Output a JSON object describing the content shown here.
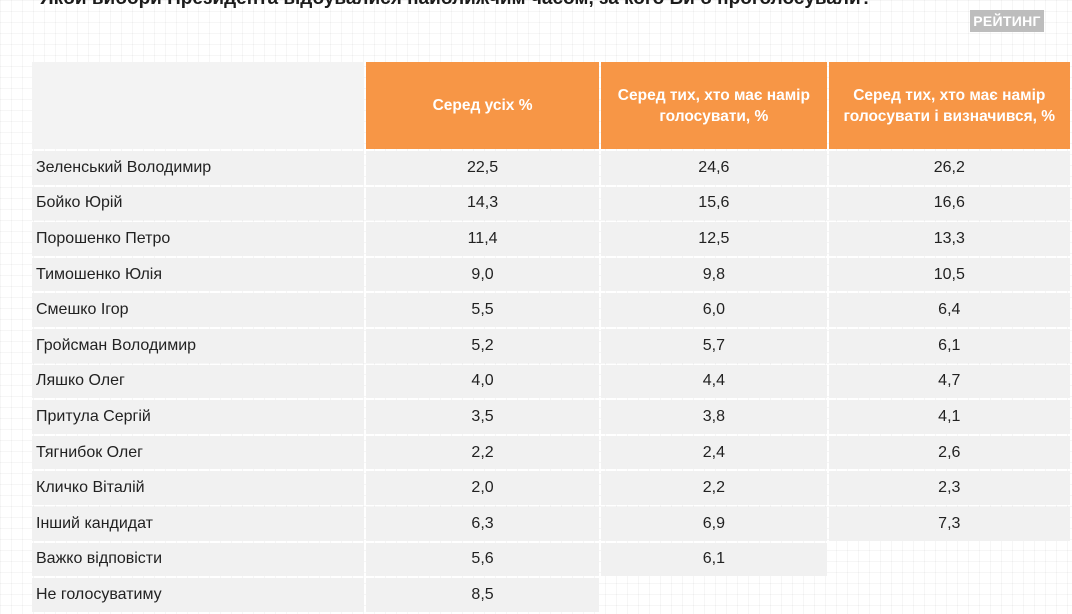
{
  "page": {
    "title": "Якби вибори Президента відбувалися найближчим часом, за кого Ви б проголосували?",
    "brand": "РЕЙТИНГ"
  },
  "chart_data": {
    "type": "table",
    "title": "Якби вибори Президента відбувалися найближчим часом, за кого Ви б проголосували?",
    "columns": [
      "",
      "Серед усіх %",
      "Серед тих, хто має намір голосувати, %",
      "Серед тих, хто має намір голосувати і визначився, %"
    ],
    "rows": [
      {
        "name": "Зеленський Володимир",
        "values": [
          "22,5",
          "24,6",
          "26,2"
        ]
      },
      {
        "name": "Бойко Юрій",
        "values": [
          "14,3",
          "15,6",
          "16,6"
        ]
      },
      {
        "name": "Порошенко Петро",
        "values": [
          "11,4",
          "12,5",
          "13,3"
        ]
      },
      {
        "name": "Тимошенко Юлія",
        "values": [
          "9,0",
          "9,8",
          "10,5"
        ]
      },
      {
        "name": "Смешко Ігор",
        "values": [
          "5,5",
          "6,0",
          "6,4"
        ]
      },
      {
        "name": "Гройсман Володимир",
        "values": [
          "5,2",
          "5,7",
          "6,1"
        ]
      },
      {
        "name": "Ляшко Олег",
        "values": [
          "4,0",
          "4,4",
          "4,7"
        ]
      },
      {
        "name": "Притула Сергій",
        "values": [
          "3,5",
          "3,8",
          "4,1"
        ]
      },
      {
        "name": "Тягнибок Олег",
        "values": [
          "2,2",
          "2,4",
          "2,6"
        ]
      },
      {
        "name": "Кличко Віталій",
        "values": [
          "2,0",
          "2,2",
          "2,3"
        ]
      },
      {
        "name": "Інший кандидат",
        "values": [
          "6,3",
          "6,9",
          "7,3"
        ]
      },
      {
        "name": "Важко відповісти",
        "values": [
          "5,6",
          "6,1",
          null
        ]
      },
      {
        "name": "Не голосуватиму",
        "values": [
          "8,5",
          null,
          null
        ]
      }
    ]
  },
  "colors": {
    "header_bg": "#f79646",
    "header_text": "#ffffff",
    "row_bg": "#f1f1f1",
    "badge_bg": "#bdbdbd"
  }
}
